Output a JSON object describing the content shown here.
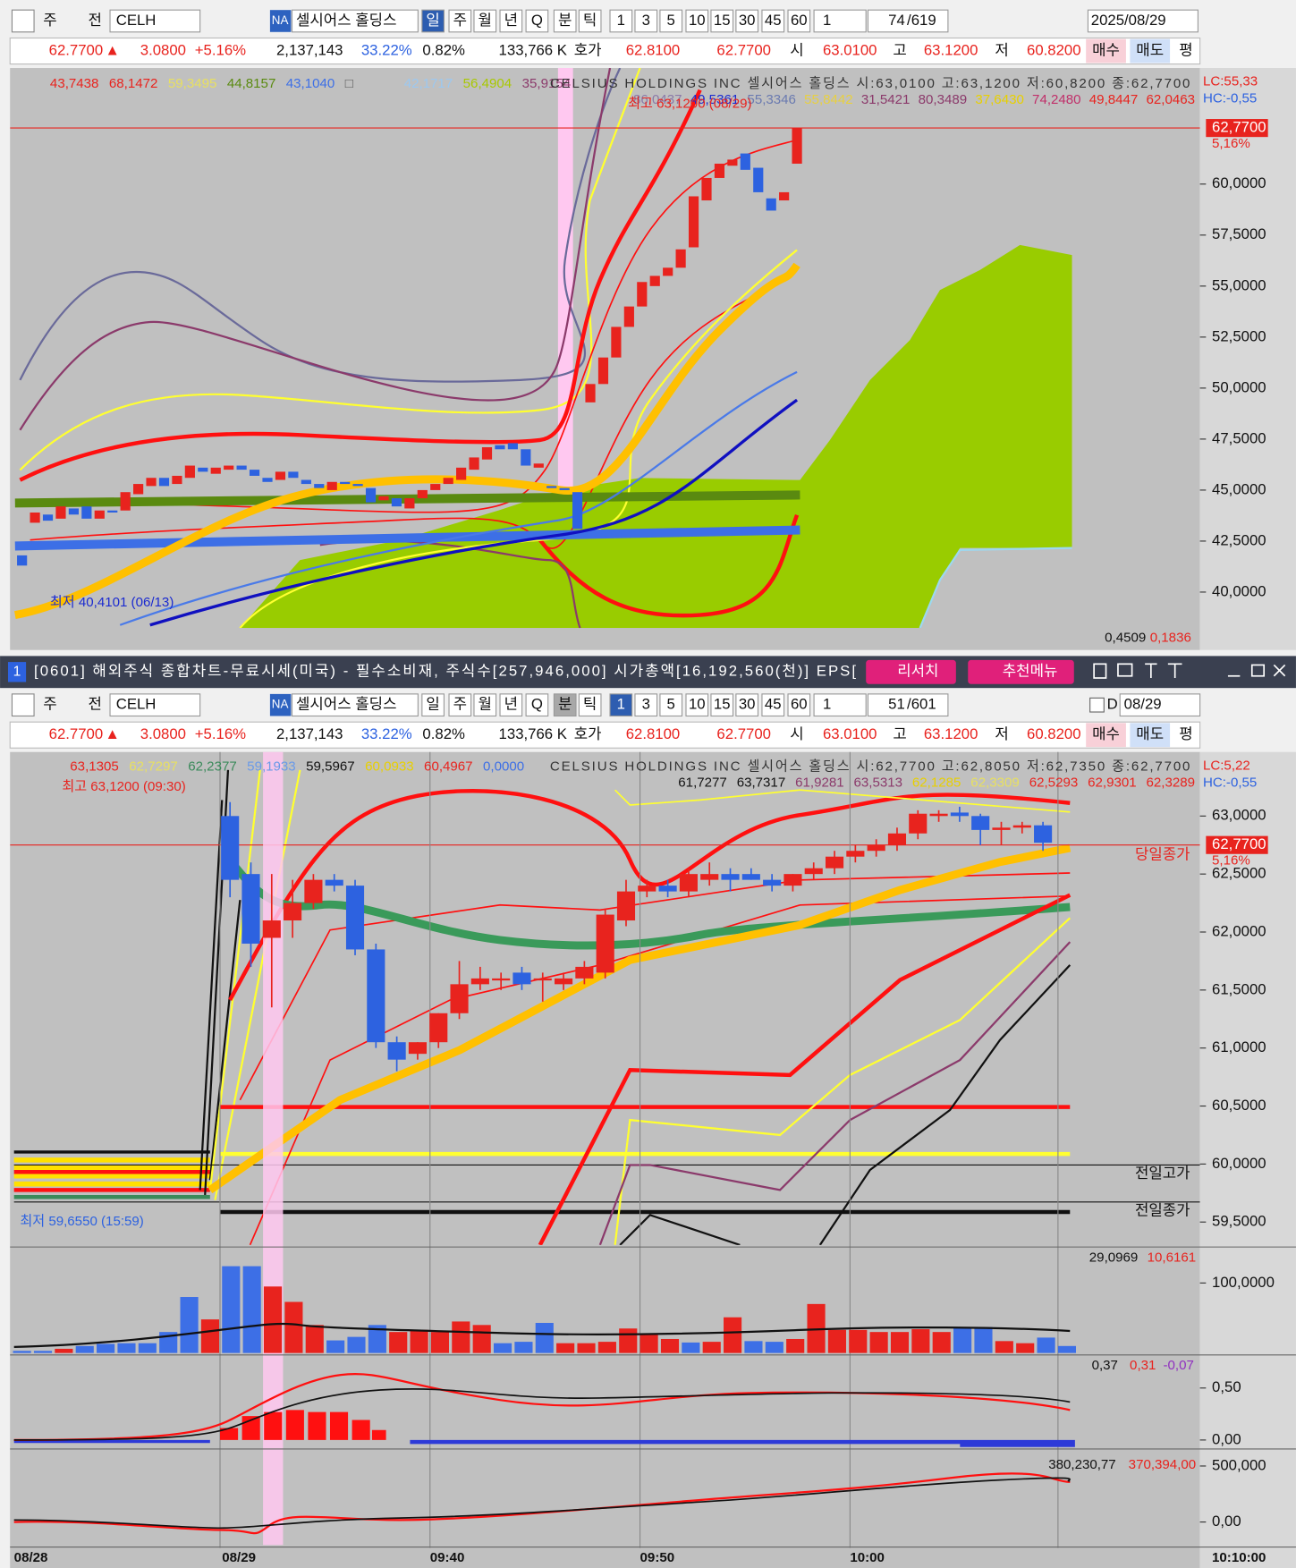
{
  "toolbar": {
    "mode": "주",
    "prev": "전",
    "code": "CELH",
    "badge": "NA",
    "name": "셀시어스 홀딩스",
    "periods": [
      "일",
      "주",
      "월",
      "년",
      "Q",
      "분",
      "틱"
    ],
    "intervals": [
      "1",
      "3",
      "5",
      "10",
      "15",
      "30",
      "45",
      "60"
    ],
    "count": "1"
  },
  "top_toolbar": {
    "position": "74",
    "total": "/619",
    "date": "2025/08/29"
  },
  "bottom_toolbar": {
    "position": "51",
    "total": "/601",
    "flag": "D",
    "date": "08/29"
  },
  "quote": {
    "price": "62.7700",
    "arrow": "▲",
    "change": "3.0800",
    "change_pct": "+5.16%",
    "volume": "2,137,143",
    "turnover": "33.22%",
    "ratio": "0.82%",
    "amount": "133,766 K",
    "bid_label": "호가",
    "bid": "62.8100",
    "ask": "62.7700",
    "open_label": "시",
    "open": "63.0100",
    "high_label": "고",
    "high": "63.1200",
    "low_label": "저",
    "low": "60.8200",
    "buy": "매수",
    "sell": "매도",
    "avg": "평"
  },
  "top_chart": {
    "legend": [
      {
        "text": "43,7438",
        "color": "#e8231e"
      },
      {
        "text": "68,1472",
        "color": "#e8231e"
      },
      {
        "text": "59,3495",
        "color": "#e8e060"
      },
      {
        "text": "44,8157",
        "color": "#5a8a10"
      },
      {
        "text": "43,1040",
        "color": "#3d6fe6"
      },
      {
        "text": "□",
        "color": "#555555"
      },
      {
        "text": "42,1717",
        "color": "#9cc8f0"
      },
      {
        "text": "56,4904",
        "color": "#a8c800"
      },
      {
        "text": "35,9154",
        "color": "#8b3a6b"
      }
    ],
    "title": "CELSIUS HOLDINGS INC  셀시어스 홀딩스 시:63,0100 고:63,1200 저:60,8200 종:62,7700",
    "legend2": [
      {
        "text": "86,0437",
        "color": "#8a7aa8"
      },
      {
        "text": "49,5361",
        "color": "#1a2ad0"
      },
      {
        "text": "55,3346",
        "color": "#6a7ab0"
      },
      {
        "text": "55,8442",
        "color": "#e8d040"
      },
      {
        "text": "31,5421",
        "color": "#8b3a6b"
      },
      {
        "text": "80,3489",
        "color": "#8b3a6b"
      },
      {
        "text": "37,6430",
        "color": "#e8d000"
      },
      {
        "text": "74,2480",
        "color": "#c0306a"
      },
      {
        "text": "49,8447",
        "color": "#e8231e"
      },
      {
        "text": "62,0463",
        "color": "#e8231e"
      }
    ],
    "lc": "LC:55,33",
    "hc": "HC:-0,55",
    "price_label": "62,7700",
    "pct_label": "5,16%",
    "high_note": "최고 63,1200 (08/29)",
    "low_note": "최저 40,4101 (06/13)",
    "indicator": [
      "0,4509",
      "0,1836"
    ],
    "ylim": [
      38.24,
      65.69
    ],
    "yticks": [
      {
        "value": 60,
        "label": "60,0000"
      },
      {
        "value": 57.5,
        "label": "57,5000"
      },
      {
        "value": 55,
        "label": "55,0000"
      },
      {
        "value": 52.5,
        "label": "52,5000"
      },
      {
        "value": 50,
        "label": "50,0000"
      },
      {
        "value": 47.5,
        "label": "47,5000"
      },
      {
        "value": 45,
        "label": "45,0000"
      },
      {
        "value": 42.5,
        "label": "42,5000"
      },
      {
        "value": 40,
        "label": "40,0000"
      }
    ],
    "candles": [
      [
        41.8,
        41.3
      ],
      [
        43.4,
        43.9
      ],
      [
        43.8,
        43.5
      ],
      [
        43.6,
        44.2
      ],
      [
        44.1,
        43.8
      ],
      [
        44.2,
        43.6
      ],
      [
        43.6,
        44.0
      ],
      [
        44.0,
        43.9
      ],
      [
        44.0,
        44.9
      ],
      [
        44.8,
        45.3
      ],
      [
        45.2,
        45.6
      ],
      [
        45.6,
        45.2
      ],
      [
        45.3,
        45.7
      ],
      [
        45.6,
        46.2
      ],
      [
        46.1,
        45.9
      ],
      [
        45.8,
        46.1
      ],
      [
        46.0,
        46.2
      ],
      [
        46.2,
        46.0
      ],
      [
        46.0,
        45.7
      ],
      [
        45.6,
        45.4
      ],
      [
        45.5,
        45.9
      ],
      [
        45.9,
        45.6
      ],
      [
        45.5,
        45.3
      ],
      [
        45.3,
        45.1
      ],
      [
        45.0,
        45.4
      ],
      [
        45.4,
        45.3
      ],
      [
        45.3,
        45.2
      ],
      [
        45.1,
        44.4
      ],
      [
        44.5,
        44.7
      ],
      [
        44.6,
        44.2
      ],
      [
        44.1,
        44.6
      ],
      [
        44.6,
        45.0
      ],
      [
        45.0,
        45.3
      ],
      [
        45.3,
        45.6
      ],
      [
        45.5,
        46.1
      ],
      [
        46.0,
        46.6
      ],
      [
        46.5,
        47.1
      ],
      [
        47.2,
        47.0
      ],
      [
        47.3,
        47.0
      ],
      [
        47.0,
        46.2
      ],
      [
        46.1,
        46.3
      ],
      [
        45.2,
        45.1
      ],
      [
        45.1,
        45.0
      ],
      [
        44.9,
        43.1
      ],
      [
        49.3,
        50.2
      ],
      [
        50.2,
        51.5
      ],
      [
        51.5,
        53.0
      ],
      [
        53.0,
        54.0
      ],
      [
        54.0,
        55.2
      ],
      [
        55.0,
        55.5
      ],
      [
        55.5,
        55.9
      ],
      [
        55.9,
        56.8
      ],
      [
        56.9,
        59.4
      ],
      [
        59.2,
        60.3
      ],
      [
        60.3,
        61.0
      ],
      [
        60.9,
        61.2
      ],
      [
        61.5,
        60.7
      ],
      [
        60.8,
        59.6
      ],
      [
        59.3,
        58.7
      ],
      [
        59.2,
        59.6
      ],
      [
        61.0,
        62.77
      ]
    ],
    "up_color": "#e8231e",
    "down_color": "#2d62e0"
  },
  "window": {
    "index": "1",
    "title": "[0601] 해외주식 종합차트-무료시세(미국) - 필수소비재, 주식수[257,946,000] 시가총액[16,192,560(천)] EPS[",
    "research": "리서치",
    "menu": "추천메뉴"
  },
  "bottom_chart": {
    "legend": [
      {
        "text": "63,1305",
        "color": "#e8231e"
      },
      {
        "text": "62,7297",
        "color": "#e8e060"
      },
      {
        "text": "62,2377",
        "color": "#3a8a5a"
      },
      {
        "text": "59,1933",
        "color": "#6a9ae8"
      },
      {
        "text": "59,5967",
        "color": "#111111"
      },
      {
        "text": "60,0933",
        "color": "#e8d000"
      },
      {
        "text": "60,4967",
        "color": "#e8231e"
      },
      {
        "text": "0,0000",
        "color": "#3d6fe6"
      }
    ],
    "title": "CELSIUS HOLDINGS INC  셀시어스 홀딩스 시:62,7700 고:62,8050 저:62,7350 종:62,7700",
    "legend2": [
      {
        "text": "61,7277",
        "color": "#111111"
      },
      {
        "text": "63,7317",
        "color": "#111111"
      },
      {
        "text": "61,9281",
        "color": "#8b3a6b"
      },
      {
        "text": "63,5313",
        "color": "#8b3a6b"
      },
      {
        "text": "62,1285",
        "color": "#e8d000"
      },
      {
        "text": "62,3309",
        "color": "#e8e060"
      },
      {
        "text": "62,5293",
        "color": "#e8231e"
      },
      {
        "text": "62,9301",
        "color": "#e8231e"
      },
      {
        "text": "62,3289",
        "color": "#e8231e"
      }
    ],
    "lc": "LC:5,22",
    "hc": "HC:-0,55",
    "price_label": "62,7700",
    "pct_label": "5,16%",
    "close_note": "당일종가",
    "prev_high": "전일고가",
    "prev_close": "전일종가",
    "high_note": "최고 63,1200 (09:30)",
    "low_note": "최저 59,6550 (15:59)",
    "ylim": [
      59.302,
      63.552
    ],
    "yticks": [
      {
        "value": 63,
        "label": "63,0000"
      },
      {
        "value": 62.5,
        "label": "62,5000"
      },
      {
        "value": 62,
        "label": "62,0000"
      },
      {
        "value": 61.5,
        "label": "61,5000"
      },
      {
        "value": 61,
        "label": "61,0000"
      },
      {
        "value": 60.5,
        "label": "60,5000"
      },
      {
        "value": 60,
        "label": "60,0000"
      },
      {
        "value": 59.5,
        "label": "59,5000"
      }
    ],
    "candles": [
      [
        63.0,
        63.12,
        62.3,
        62.45
      ],
      [
        62.5,
        62.6,
        61.7,
        61.9
      ],
      [
        61.95,
        62.5,
        61.35,
        62.1
      ],
      [
        62.1,
        62.45,
        61.95,
        62.25
      ],
      [
        62.25,
        62.5,
        62.2,
        62.45
      ],
      [
        62.45,
        62.5,
        62.35,
        62.4
      ],
      [
        62.4,
        62.45,
        61.8,
        61.85
      ],
      [
        61.85,
        61.9,
        61.0,
        61.05
      ],
      [
        61.05,
        61.1,
        60.8,
        60.9
      ],
      [
        60.95,
        61.05,
        60.9,
        61.05
      ],
      [
        61.05,
        61.3,
        61.0,
        61.3
      ],
      [
        61.3,
        61.75,
        61.25,
        61.55
      ],
      [
        61.55,
        61.7,
        61.5,
        61.6
      ],
      [
        61.6,
        61.65,
        61.5,
        61.6
      ],
      [
        61.65,
        61.7,
        61.5,
        61.55
      ],
      [
        61.6,
        61.65,
        61.4,
        61.6
      ],
      [
        61.55,
        61.65,
        61.5,
        61.6
      ],
      [
        61.6,
        61.75,
        61.55,
        61.7
      ],
      [
        61.65,
        62.2,
        61.6,
        62.15
      ],
      [
        62.1,
        62.45,
        62.05,
        62.35
      ],
      [
        62.35,
        62.45,
        62.3,
        62.4
      ],
      [
        62.4,
        62.45,
        62.3,
        62.35
      ],
      [
        62.35,
        62.55,
        62.3,
        62.5
      ],
      [
        62.45,
        62.6,
        62.4,
        62.5
      ],
      [
        62.5,
        62.55,
        62.35,
        62.45
      ],
      [
        62.5,
        62.55,
        62.45,
        62.45
      ],
      [
        62.45,
        62.5,
        62.35,
        62.4
      ],
      [
        62.4,
        62.5,
        62.35,
        62.5
      ],
      [
        62.5,
        62.6,
        62.45,
        62.55
      ],
      [
        62.55,
        62.7,
        62.5,
        62.65
      ],
      [
        62.65,
        62.75,
        62.6,
        62.7
      ],
      [
        62.7,
        62.8,
        62.65,
        62.75
      ],
      [
        62.75,
        62.9,
        62.7,
        62.85
      ],
      [
        62.85,
        63.05,
        62.8,
        63.02
      ],
      [
        63.0,
        63.05,
        62.95,
        63.02
      ],
      [
        63.03,
        63.08,
        62.95,
        63.0
      ],
      [
        63.0,
        63.02,
        62.75,
        62.88
      ],
      [
        62.88,
        62.95,
        62.75,
        62.9
      ],
      [
        62.9,
        62.95,
        62.85,
        62.92
      ],
      [
        62.92,
        62.95,
        62.7,
        62.77
      ]
    ],
    "up_color": "#e8231e",
    "down_color": "#2d62e0"
  },
  "volume": {
    "legend": [
      {
        "text": "29,0969",
        "color": "#111111"
      },
      {
        "text": "10,6161",
        "color": "#e8231e"
      }
    ],
    "ylim": [
      0,
      150
    ],
    "yticks": [
      {
        "value": 100,
        "label": "100,0000"
      }
    ],
    "values": [
      3,
      3,
      6,
      10,
      13,
      14,
      14,
      30,
      80,
      48,
      124,
      124,
      95,
      73,
      40,
      18,
      23,
      40,
      30,
      33,
      30,
      45,
      40,
      14,
      16,
      43,
      14,
      14,
      16,
      35,
      27,
      20,
      15,
      16,
      51,
      17,
      16,
      20,
      70,
      33,
      33,
      30,
      30,
      34,
      30,
      37,
      37,
      17,
      14,
      22,
      10
    ],
    "colors": [
      "#3d6fe6",
      "#3d6fe6",
      "#e8231e",
      "#3d6fe6",
      "#3d6fe6",
      "#3d6fe6",
      "#3d6fe6",
      "#3d6fe6",
      "#3d6fe6",
      "#e8231e",
      "#3d6fe6",
      "#3d6fe6",
      "#e8231e",
      "#e8231e",
      "#e8231e",
      "#3d6fe6",
      "#3d6fe6",
      "#3d6fe6",
      "#e8231e",
      "#e8231e",
      "#e8231e",
      "#e8231e",
      "#e8231e",
      "#3d6fe6",
      "#3d6fe6",
      "#3d6fe6",
      "#e8231e",
      "#e8231e",
      "#e8231e",
      "#e8231e",
      "#e8231e",
      "#e8231e",
      "#3d6fe6",
      "#e8231e",
      "#e8231e",
      "#3d6fe6",
      "#3d6fe6",
      "#e8231e",
      "#e8231e",
      "#e8231e",
      "#e8231e",
      "#e8231e",
      "#e8231e",
      "#e8231e",
      "#e8231e",
      "#3d6fe6",
      "#3d6fe6",
      "#e8231e",
      "#e8231e",
      "#3d6fe6",
      "#3d6fe6"
    ]
  },
  "macd": {
    "legend": [
      {
        "text": "0,37",
        "color": "#111111"
      },
      {
        "text": "0,31",
        "color": "#e8231e"
      },
      {
        "text": "-0,07",
        "color": "#9030c0"
      }
    ],
    "ylim": [
      -0.077,
      0.808
    ],
    "yticks": [
      {
        "value": 0.5,
        "label": "0,50"
      },
      {
        "value": 0,
        "label": "0,00"
      }
    ]
  },
  "obv": {
    "legend": [
      {
        "text": "380,230,77",
        "color": "#111111"
      },
      {
        "text": "370,394,00",
        "color": "#e8231e"
      }
    ],
    "ylim": [
      -205357,
      642857
    ],
    "yticks": [
      {
        "value": 500000,
        "label": "500,000"
      },
      {
        "value": 0,
        "label": "0,00"
      }
    ]
  },
  "time_axis": [
    "08/28",
    "08/29",
    "09:40",
    "09:50",
    "10:00",
    "10:10:00"
  ]
}
